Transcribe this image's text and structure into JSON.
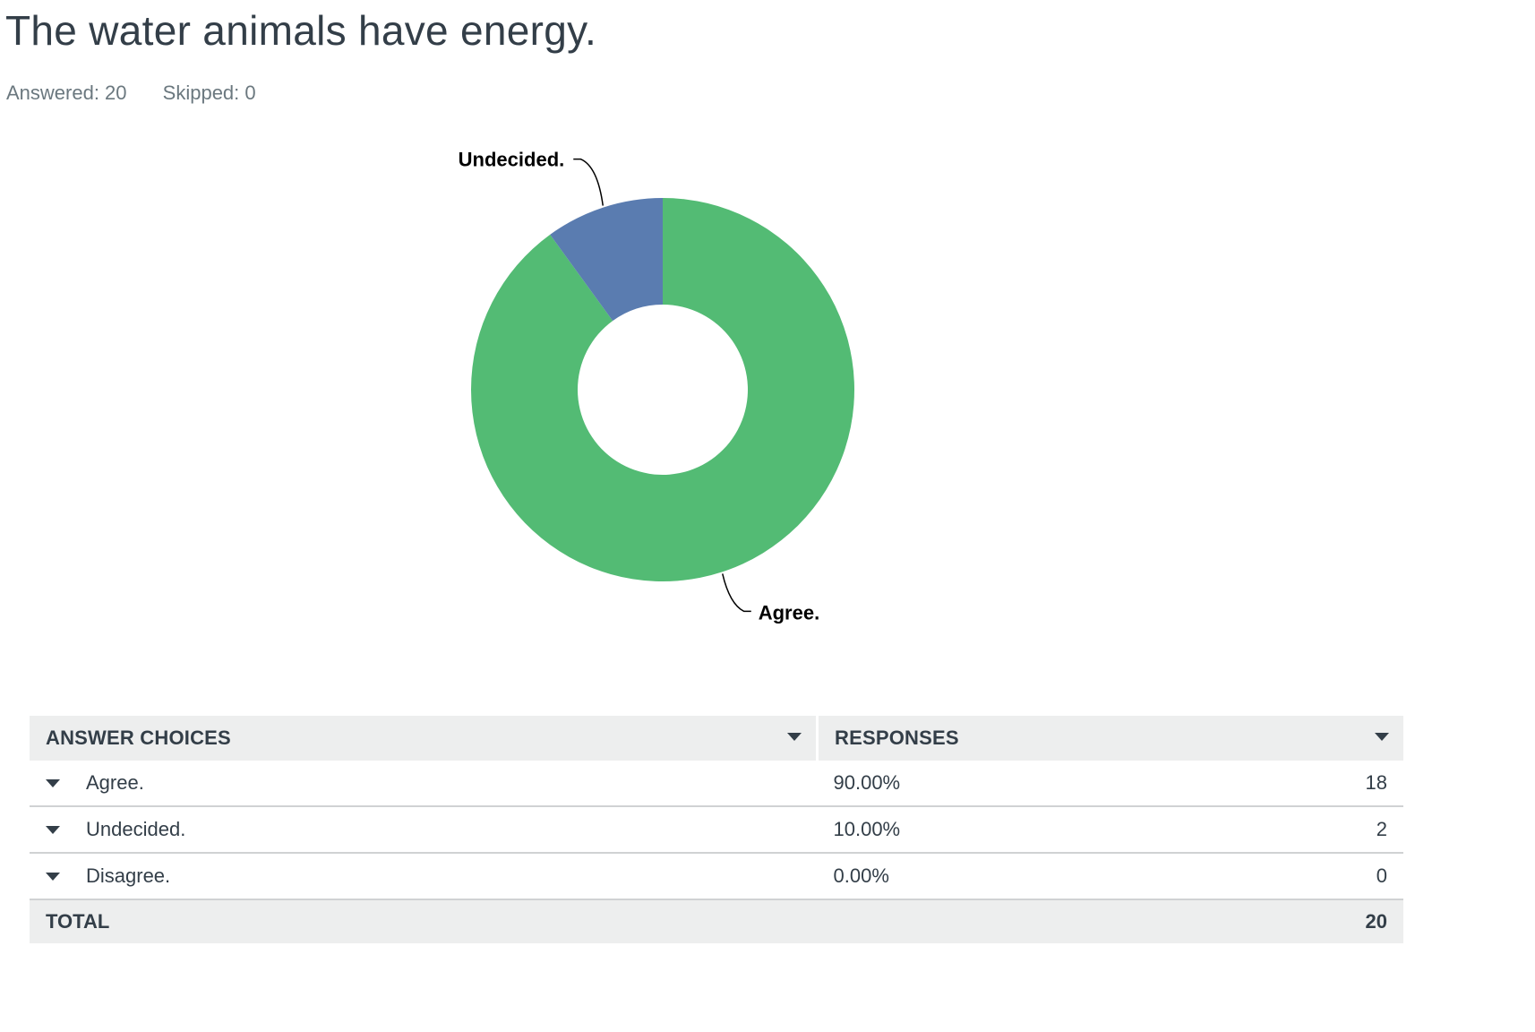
{
  "question": {
    "title": "The water animals have energy.",
    "answered": "Answered: 20",
    "skipped": "Skipped: 0"
  },
  "colors": {
    "agree": "#53bb74",
    "undecided": "#5a7cb0",
    "text": "#333e48",
    "header_bg": "#edeeee"
  },
  "chart_data": {
    "type": "pie",
    "variant": "donut",
    "slices": [
      {
        "label": "Agree.",
        "value": 18,
        "percent": 90.0,
        "color": "#53bb74"
      },
      {
        "label": "Undecided.",
        "value": 2,
        "percent": 10.0,
        "color": "#5a7cb0"
      },
      {
        "label": "Disagree.",
        "value": 0,
        "percent": 0.0,
        "color": "#9aa4aa"
      }
    ]
  },
  "table": {
    "header_choices": "ANSWER CHOICES",
    "header_responses": "RESPONSES",
    "rows": [
      {
        "choice": "Agree.",
        "percent": "90.00%",
        "count": "18"
      },
      {
        "choice": "Undecided.",
        "percent": "10.00%",
        "count": "2"
      },
      {
        "choice": "Disagree.",
        "percent": "0.00%",
        "count": "0"
      }
    ],
    "total_label": "TOTAL",
    "total_value": "20"
  }
}
